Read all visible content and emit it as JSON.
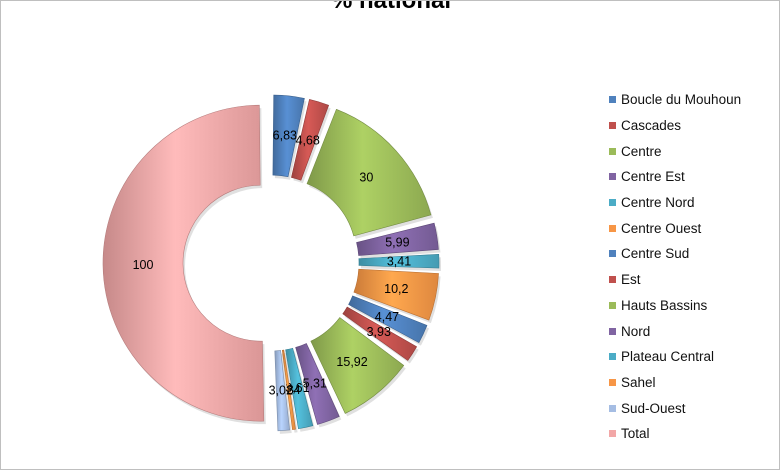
{
  "chart_data": {
    "type": "pie",
    "title": "% national",
    "legend_position": "right",
    "categories": [
      "Boucle du Mouhoun",
      "Cascades",
      "Centre",
      "Centre Est",
      "Centre Nord",
      "Centre Ouest",
      "Centre Sud",
      "Est",
      "Hauts Bassins",
      "Nord",
      "Plateau Central",
      "Sahel",
      "Sud-Ouest",
      "Total"
    ],
    "values": [
      6.83,
      4.68,
      30,
      5.99,
      3.41,
      10.2,
      4.47,
      3.93,
      15.92,
      5.31,
      3.61,
      0.84,
      3.02,
      100
    ],
    "data_labels": [
      "6,83",
      "4,68",
      "30",
      "5,99",
      "3,41",
      "10,2",
      "4,47",
      "3,93",
      "15,92",
      "5,31",
      "3,61",
      "0,84",
      "3,02",
      "100"
    ],
    "colors": [
      "#4f81bd",
      "#c0504d",
      "#9bbb59",
      "#8064a2",
      "#4bacc6",
      "#f79646",
      "#4f81bd",
      "#c0504d",
      "#9bbb59",
      "#8064a2",
      "#4bacc6",
      "#f79646",
      "#a5bde3",
      "#f2a7a7"
    ]
  }
}
